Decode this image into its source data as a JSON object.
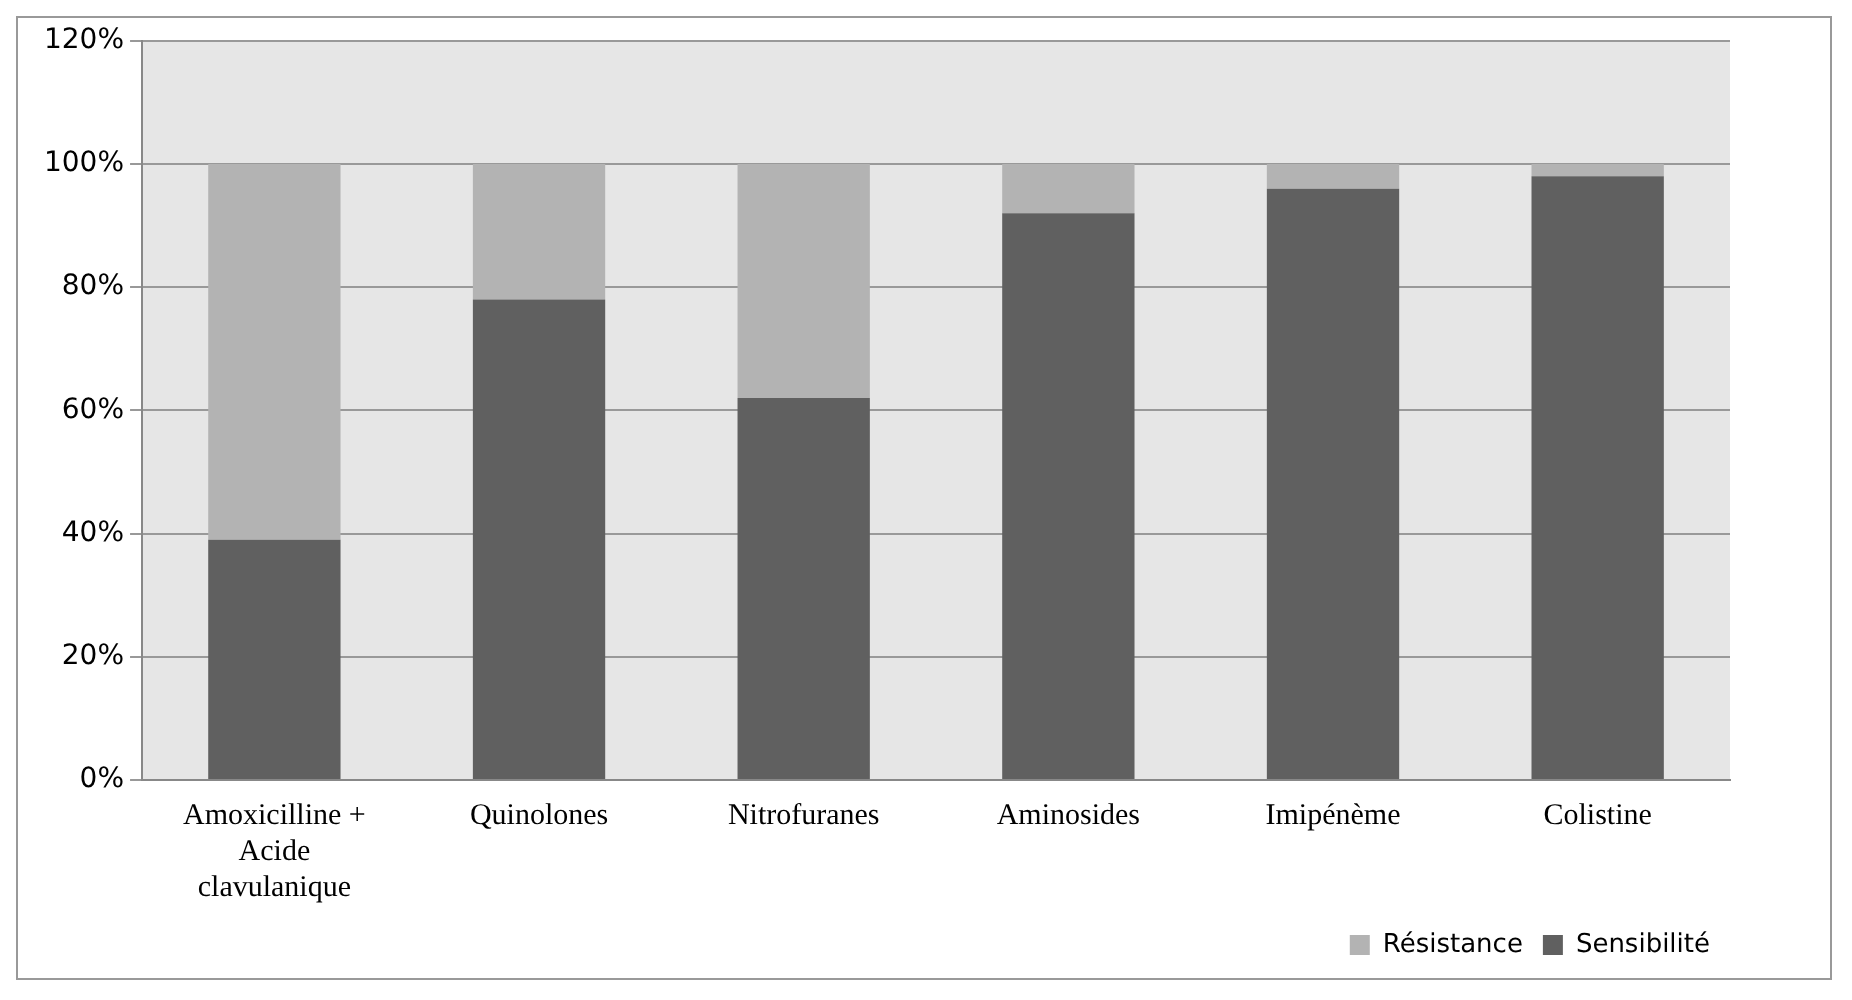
{
  "chart_data": {
    "type": "bar",
    "stacked": true,
    "categories": [
      "Amoxicilline + Acide clavulanique",
      "Quinolones",
      "Nitrofuranes",
      "Aminosides",
      "Imipénème",
      "Colistine"
    ],
    "series": [
      {
        "name": "Sensibilité",
        "color": "#606060",
        "values": [
          39,
          78,
          62,
          92,
          96,
          98
        ]
      },
      {
        "name": "Résistance",
        "color": "#b3b3b3",
        "values": [
          61,
          22,
          38,
          8,
          4,
          2
        ]
      }
    ],
    "ylim": [
      0,
      120
    ],
    "yticks": [
      {
        "value": 0,
        "label": "0%"
      },
      {
        "value": 20,
        "label": "20%"
      },
      {
        "value": 40,
        "label": "40%"
      },
      {
        "value": 60,
        "label": "60%"
      },
      {
        "value": 80,
        "label": "80%"
      },
      {
        "value": 100,
        "label": "100%"
      },
      {
        "value": 120,
        "label": "120%"
      }
    ],
    "grid": "y",
    "legend": "bottom right"
  }
}
